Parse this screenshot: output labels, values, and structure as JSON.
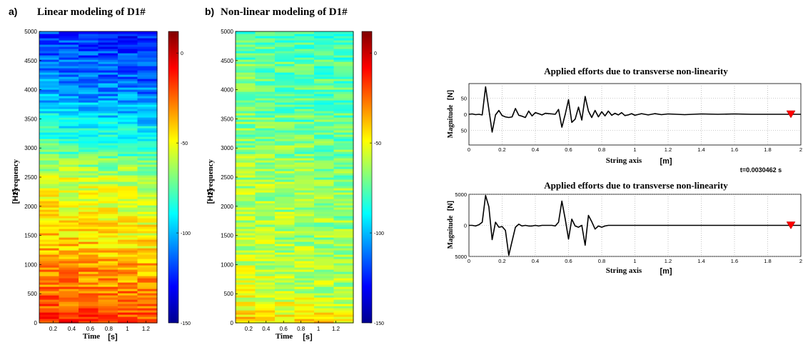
{
  "figure": {
    "panel_a": {
      "letter": "a)",
      "title": "Linear modeling of D1#"
    },
    "panel_b": {
      "letter": "b)",
      "title": "Non-linear modeling of D1#"
    }
  },
  "chart_data": [
    {
      "type": "heatmap",
      "title": "Linear modeling of D1#",
      "xlabel": "Time",
      "xunit": "[s]",
      "ylabel": "Frequency",
      "yunit": "[Hz]",
      "xlim": [
        0.05,
        1.32
      ],
      "xticks": [
        "0.2",
        "0.4",
        "0.6",
        "0.8",
        "1",
        "1.2"
      ],
      "xtick_values": [
        0.2,
        0.4,
        0.6,
        0.8,
        1.0,
        1.2
      ],
      "ylim": [
        0,
        5000
      ],
      "yticks": [
        "0",
        "500",
        "1000",
        "1500",
        "2000",
        "2500",
        "3000",
        "3500",
        "4000",
        "4500",
        "5000"
      ],
      "colorbar": {
        "ticks": [
          "0",
          "-50",
          "-100",
          "-150"
        ],
        "tick_values": [
          0,
          -50,
          -100,
          -150
        ],
        "range": [
          -150,
          12
        ]
      },
      "colormap": "jet",
      "level_profile": [
        [
          0,
          -12
        ],
        [
          300,
          -22
        ],
        [
          800,
          -28
        ],
        [
          1500,
          -42
        ],
        [
          2500,
          -55
        ],
        [
          3000,
          -75
        ],
        [
          4000,
          -105
        ],
        [
          5000,
          -120
        ]
      ]
    },
    {
      "type": "heatmap",
      "title": "Non-linear modeling of D1#",
      "xlabel": "Time",
      "xunit": "[s]",
      "ylabel": "Frequency",
      "yunit": "[Hz]",
      "xlim": [
        0.05,
        1.4
      ],
      "xticks": [
        "0.2",
        "0.4",
        "0.6",
        "0.8",
        "1",
        "1.2"
      ],
      "xtick_values": [
        0.2,
        0.4,
        0.6,
        0.8,
        1.0,
        1.2
      ],
      "ylim": [
        0,
        5000
      ],
      "yticks": [
        "0",
        "500",
        "1000",
        "1500",
        "2000",
        "2500",
        "3000",
        "3500",
        "4000",
        "4500",
        "5000"
      ],
      "colorbar": {
        "ticks": [
          "0",
          "-50",
          "-100",
          "-150"
        ],
        "tick_values": [
          0,
          -50,
          -100,
          -150
        ],
        "range": [
          -150,
          12
        ]
      },
      "colormap": "jet",
      "level_profile": [
        [
          0,
          -40
        ],
        [
          500,
          -55
        ],
        [
          1500,
          -60
        ],
        [
          2500,
          -62
        ],
        [
          3500,
          -70
        ],
        [
          4500,
          -72
        ],
        [
          5000,
          -78
        ]
      ]
    },
    {
      "type": "line",
      "title": "Applied efforts due to transverse non-linearity",
      "xlabel": "String axis",
      "xunit": "[m]",
      "ylabel": "Magnitude",
      "yunit": "[N]",
      "xlim": [
        0,
        2.0
      ],
      "ylim": [
        -95,
        95
      ],
      "xticks": [
        "0",
        "0.2",
        "0.4",
        "0.6",
        "0.8",
        "1",
        "1.2",
        "1.4",
        "1.6",
        "1.8",
        "2"
      ],
      "xtick_values": [
        0,
        0.2,
        0.4,
        0.6,
        0.8,
        1.0,
        1.2,
        1.4,
        1.6,
        1.8,
        2.0
      ],
      "yticks": [
        "50",
        "0",
        "50"
      ],
      "ytick_values": [
        50,
        0,
        -50
      ],
      "grid": true,
      "annotation": "t=0.0030462 s",
      "marker": {
        "x": 1.94,
        "y": 0,
        "color": "#ff0000"
      },
      "x": [
        0,
        0.02,
        0.04,
        0.06,
        0.08,
        0.1,
        0.12,
        0.14,
        0.16,
        0.18,
        0.2,
        0.22,
        0.24,
        0.26,
        0.28,
        0.3,
        0.32,
        0.34,
        0.36,
        0.38,
        0.4,
        0.42,
        0.44,
        0.46,
        0.48,
        0.5,
        0.52,
        0.54,
        0.56,
        0.58,
        0.6,
        0.62,
        0.64,
        0.66,
        0.68,
        0.7,
        0.72,
        0.74,
        0.76,
        0.78,
        0.8,
        0.82,
        0.84,
        0.86,
        0.88,
        0.9,
        0.92,
        0.94,
        0.96,
        0.98,
        1.0,
        1.04,
        1.08,
        1.12,
        1.16,
        1.2,
        1.3,
        1.4,
        1.5,
        1.6,
        1.7,
        1.8,
        1.9,
        2.0
      ],
      "y": [
        0,
        1,
        -1,
        0,
        -2,
        85,
        15,
        -55,
        -2,
        12,
        -4,
        -8,
        -10,
        -8,
        18,
        -3,
        -6,
        -10,
        10,
        -5,
        5,
        2,
        -2,
        3,
        2,
        1,
        0,
        15,
        -40,
        0,
        45,
        -25,
        -15,
        22,
        -18,
        55,
        10,
        -10,
        12,
        -8,
        8,
        -5,
        10,
        -3,
        3,
        -2,
        5,
        -4,
        -2,
        2,
        -3,
        2,
        -2,
        2,
        -1,
        1,
        -1,
        1,
        0,
        1,
        0,
        0,
        0,
        0
      ]
    },
    {
      "type": "line",
      "title": "Applied efforts due to transverse non-linearity",
      "xlabel": "String axis",
      "xunit": "[m]",
      "ylabel": "Magnitude",
      "yunit": "[N]",
      "xlim": [
        0,
        2.0
      ],
      "ylim": [
        -5000,
        5000
      ],
      "xticks": [
        "0",
        "0.2",
        "0.4",
        "0.6",
        "0.8",
        "1",
        "1.2",
        "1.4",
        "1.6",
        "1.8",
        "2"
      ],
      "xtick_values": [
        0,
        0.2,
        0.4,
        0.6,
        0.8,
        1.0,
        1.2,
        1.4,
        1.6,
        1.8,
        2.0
      ],
      "yticks": [
        "5000",
        "0",
        "5000"
      ],
      "ytick_values": [
        5000,
        0,
        -5000
      ],
      "grid": true,
      "marker": {
        "x": 1.94,
        "y": 0,
        "color": "#ff0000"
      },
      "x": [
        0,
        0.02,
        0.04,
        0.06,
        0.08,
        0.1,
        0.12,
        0.14,
        0.16,
        0.18,
        0.2,
        0.22,
        0.24,
        0.26,
        0.28,
        0.3,
        0.32,
        0.34,
        0.36,
        0.38,
        0.4,
        0.42,
        0.44,
        0.46,
        0.48,
        0.5,
        0.52,
        0.54,
        0.56,
        0.58,
        0.6,
        0.62,
        0.64,
        0.66,
        0.68,
        0.7,
        0.72,
        0.74,
        0.76,
        0.78,
        0.8,
        0.82,
        0.84,
        0.9,
        1.0,
        1.2,
        1.4,
        1.6,
        1.8,
        2.0
      ],
      "y": [
        0,
        0,
        -100,
        100,
        500,
        4800,
        3000,
        -2300,
        500,
        -300,
        -200,
        -800,
        -4800,
        -2500,
        -300,
        200,
        -100,
        0,
        -100,
        -100,
        0,
        -100,
        0,
        0,
        0,
        0,
        -100,
        500,
        3900,
        1000,
        -2200,
        1000,
        -100,
        -300,
        0,
        -3200,
        1600,
        600,
        -600,
        -100,
        -300,
        -100,
        0,
        0,
        0,
        0,
        0,
        0,
        0,
        0
      ]
    }
  ]
}
